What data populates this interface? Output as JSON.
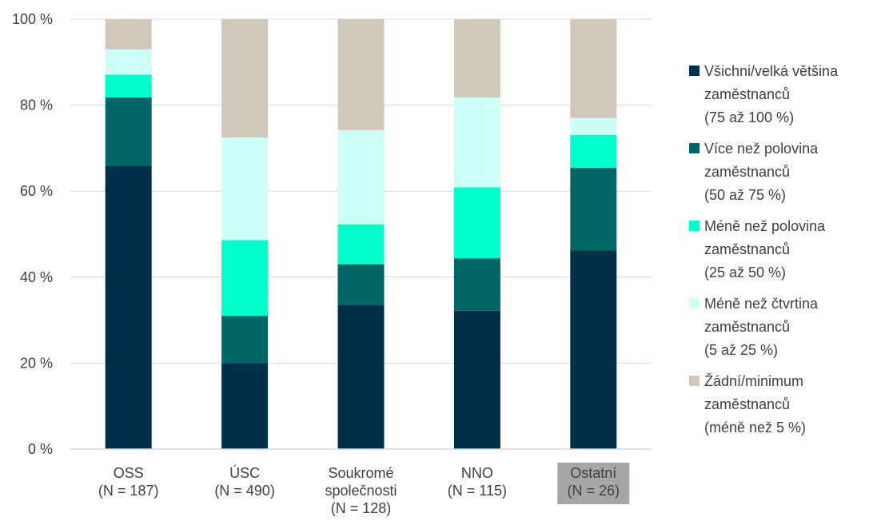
{
  "chart_data": {
    "type": "bar",
    "stacked": true,
    "percent": true,
    "ylim": [
      0,
      100
    ],
    "yticks": [
      "0 %",
      "20 %",
      "40 %",
      "60 %",
      "80 %",
      "100 %"
    ],
    "ytick_values": [
      0,
      20,
      40,
      60,
      80,
      100
    ],
    "grid": true,
    "legend_position": "right",
    "categories": [
      {
        "label": [
          "OSS",
          "(N = 187)"
        ],
        "highlighted": false
      },
      {
        "label": [
          "ÚSC",
          "(N = 490)"
        ],
        "highlighted": false
      },
      {
        "label": [
          "Soukromé",
          "společnosti",
          "(N = 128)"
        ],
        "highlighted": false
      },
      {
        "label": [
          "NNO",
          "(N = 115)"
        ],
        "highlighted": false
      },
      {
        "label": [
          "Ostatní",
          "(N = 26)"
        ],
        "highlighted": true
      }
    ],
    "series": [
      {
        "name": [
          "Všichni/velká většina",
          "zaměstnanců",
          "(75 až 100 %)"
        ],
        "color": "#003049",
        "values": [
          65.8,
          20.0,
          33.6,
          32.2,
          46.2
        ]
      },
      {
        "name": [
          "Více než polovina",
          "zaměstnanců",
          "(50 až 75 %)"
        ],
        "color": "#006666",
        "values": [
          16.0,
          11.0,
          9.4,
          12.2,
          19.2
        ]
      },
      {
        "name": [
          "Méně než polovina",
          "zaměstnanců",
          "(25 až 50 %)"
        ],
        "color": "#00FFCC",
        "values": [
          5.3,
          17.6,
          9.3,
          16.5,
          7.7
        ]
      },
      {
        "name": [
          "Méně než čtvrtina",
          "zaměstnanců",
          "(5 až 25 %)"
        ],
        "color": "#CCFFF5",
        "values": [
          5.9,
          23.9,
          21.9,
          20.9,
          3.9
        ]
      },
      {
        "name": [
          "Žádní/minimum",
          "zaměstnanců",
          "(méně než 5 %)"
        ],
        "color": "#D1C7BA",
        "values": [
          7.0,
          27.5,
          25.8,
          18.2,
          23.0
        ]
      }
    ],
    "colors": {
      "gridline": "#D9D9D9",
      "axis": "#D9D9D9",
      "text": "#404040",
      "highlight_box": "#A6A6A6"
    }
  }
}
